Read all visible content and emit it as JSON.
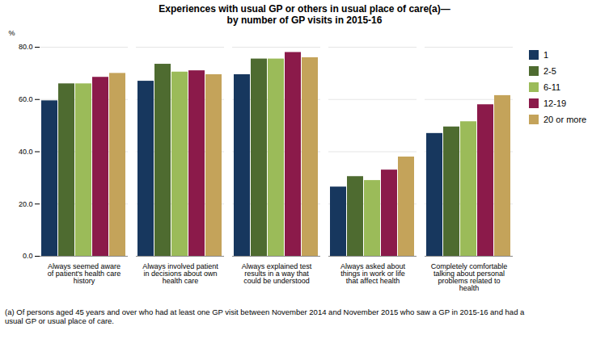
{
  "chart_data": {
    "type": "bar",
    "title": "Experiences with usual GP or others in usual place of care(a)—\nby number of GP visits in 2015-16",
    "ylabel": "%",
    "categories": [
      "Always seemed aware\nof patient's health care\nhistory",
      "Always involved patient\nin decisions about own\nhealth care",
      "Always explained test\nresults in a way that\ncould be understood",
      "Always asked about\nthings in work or life\nthat affect health",
      "Completely comfortable\ntalking about personal\nproblems related to\nhealth"
    ],
    "series": [
      {
        "name": "1",
        "color": "#17375E",
        "values": [
          59.5,
          67.0,
          69.5,
          26.5,
          47.0
        ]
      },
      {
        "name": "2-5",
        "color": "#4E6B30",
        "values": [
          66.0,
          73.5,
          75.5,
          30.5,
          49.5
        ]
      },
      {
        "name": "6-11",
        "color": "#9BBB59",
        "values": [
          66.0,
          70.5,
          75.5,
          29.0,
          51.5
        ]
      },
      {
        "name": "12-19",
        "color": "#8B1A4A",
        "values": [
          68.5,
          71.0,
          78.0,
          33.0,
          58.0
        ]
      },
      {
        "name": "20 or more",
        "color": "#C4A35A",
        "values": [
          70.0,
          69.5,
          76.0,
          38.0,
          61.5
        ]
      }
    ],
    "ylim": [
      0,
      80
    ],
    "yticks": [
      {
        "value": 0,
        "label": "0.0"
      },
      {
        "value": 20,
        "label": "20.0"
      },
      {
        "value": 40,
        "label": "40.0"
      },
      {
        "value": 60,
        "label": "60.0"
      },
      {
        "value": 80,
        "label": "80.0"
      }
    ],
    "grid": true,
    "legend": "right",
    "annotations": [
      "(a) Of persons aged 45 years and over who had at least one GP  visit between November 2014 and November 2015 who saw a GP in 2015-16 and had a\nusual GP or usual place of care."
    ]
  }
}
